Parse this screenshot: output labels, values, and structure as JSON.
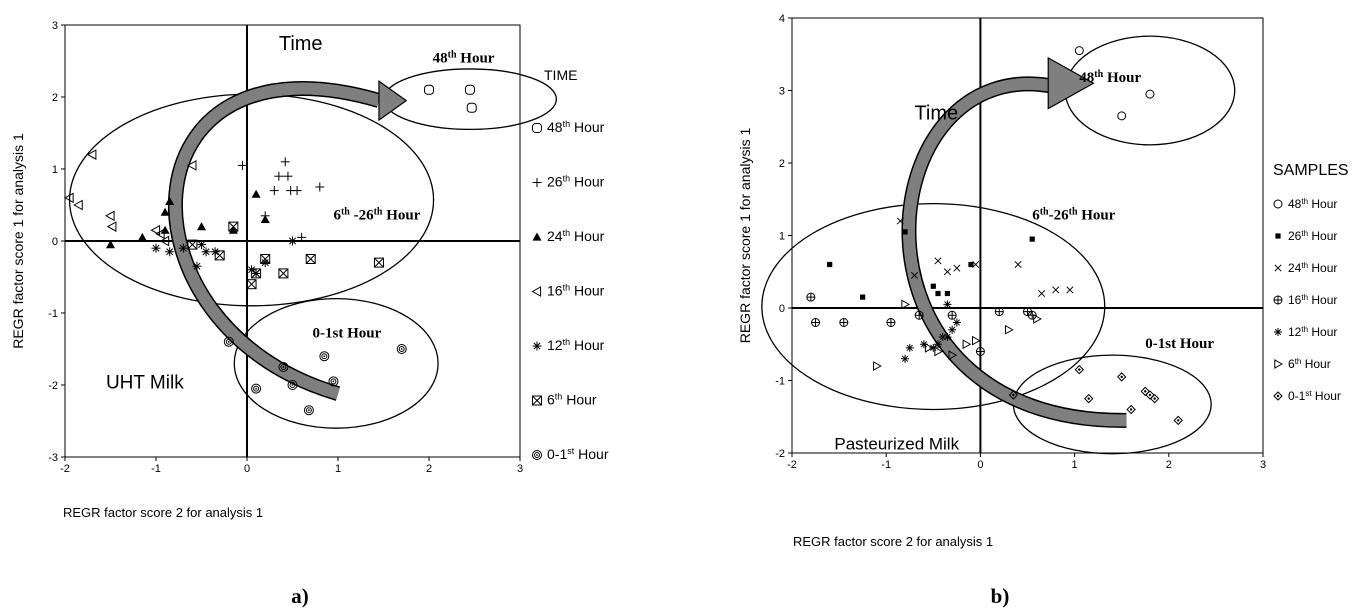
{
  "figure": {
    "left_label": "a)",
    "right_label": "b)"
  },
  "chart_data": [
    {
      "type": "scatter",
      "title": "",
      "xlabel": "REGR factor score   2 for analysis    1",
      "ylabel": "REGR factor score   1 for analysis    1",
      "xlim": [
        -2,
        3
      ],
      "ylim": [
        -3,
        3
      ],
      "xticks": [
        "-2",
        "-1",
        "0",
        "1",
        "2",
        "3"
      ],
      "yticks": [
        "-3",
        "-2",
        "-1",
        "0",
        "1",
        "2",
        "3"
      ],
      "legend_title": "TIME",
      "legend_position": "right",
      "annotations": {
        "time": "Time",
        "milk": "UHT Milk",
        "group_48": "48th Hour",
        "group_6_26": "6th -26th Hour",
        "group_0_1": "0-1st Hour"
      },
      "series": [
        {
          "name": "48th Hour",
          "sup": "th",
          "marker": "square-circle",
          "x": [
            2.0,
            2.45,
            2.47
          ],
          "y": [
            2.1,
            2.1,
            1.85
          ]
        },
        {
          "name": "26th Hour",
          "sup": "th",
          "marker": "plus",
          "x": [
            -0.05,
            0.35,
            0.42,
            0.48,
            0.3,
            0.45,
            0.55,
            0.8,
            0.2,
            0.6
          ],
          "y": [
            1.05,
            0.9,
            1.1,
            0.7,
            0.7,
            0.9,
            0.7,
            0.75,
            0.35,
            0.05
          ]
        },
        {
          "name": "24th Hour",
          "sup": "th",
          "marker": "triangle-up",
          "x": [
            -1.5,
            -1.15,
            -0.9,
            -0.9,
            -0.85,
            -0.5,
            -0.15,
            0.1,
            0.2
          ],
          "y": [
            -0.05,
            0.05,
            0.15,
            0.4,
            0.55,
            0.2,
            0.15,
            0.65,
            0.3
          ]
        },
        {
          "name": "16th Hour",
          "sup": "th",
          "marker": "triangle-left",
          "x": [
            -1.95,
            -1.85,
            -1.7,
            -1.5,
            -1.48,
            -1.0,
            -0.95,
            -0.6,
            -0.9
          ],
          "y": [
            0.6,
            0.5,
            1.2,
            0.35,
            0.2,
            0.15,
            0.1,
            1.05,
            0.0
          ]
        },
        {
          "name": "12th Hour",
          "sup": "th",
          "marker": "asterisk",
          "x": [
            -1.0,
            -0.85,
            -0.7,
            -0.5,
            -0.45,
            -0.35,
            -0.55,
            0.1,
            0.2,
            0.5,
            0.05
          ],
          "y": [
            -0.1,
            -0.15,
            -0.1,
            -0.05,
            -0.15,
            -0.15,
            -0.35,
            -0.45,
            -0.3,
            0.0,
            -0.4
          ]
        },
        {
          "name": "6th Hour",
          "sup": "th",
          "marker": "square-x",
          "x": [
            -0.6,
            -0.3,
            -0.15,
            0.05,
            0.2,
            0.1,
            0.4,
            0.7,
            1.45
          ],
          "y": [
            -0.05,
            -0.2,
            0.2,
            -0.6,
            -0.25,
            -0.45,
            -0.45,
            -0.25,
            -0.3
          ]
        },
        {
          "name": "0-1st Hour",
          "sup": "st",
          "marker": "circle-dot",
          "x": [
            -0.2,
            0.1,
            0.5,
            0.4,
            0.68,
            0.85,
            0.95,
            1.7
          ],
          "y": [
            -1.4,
            -2.05,
            -2.0,
            -1.75,
            -2.35,
            -1.6,
            -1.95,
            -1.5
          ]
        }
      ]
    },
    {
      "type": "scatter",
      "title": "",
      "xlabel": "REGR factor score   2 for analysis    1",
      "ylabel": "REGR factor score   1 for analysis    1",
      "xlim": [
        -2,
        3
      ],
      "ylim": [
        -2,
        4
      ],
      "xticks": [
        "-2",
        "-1",
        "0",
        "1",
        "2",
        "3"
      ],
      "yticks": [
        "-2",
        "-1",
        "0",
        "1",
        "2",
        "3",
        "4"
      ],
      "legend_title": "SAMPLES",
      "legend_position": "right",
      "annotations": {
        "time": "Time",
        "milk": "Pasteurized Milk",
        "group_48": "48th Hour",
        "group_6_26": "6th-26th Hour",
        "group_0_1": "0-1st Hour"
      },
      "series": [
        {
          "name": "48th Hour",
          "sup": "th",
          "marker": "circle",
          "x": [
            1.05,
            1.5,
            1.8
          ],
          "y": [
            3.55,
            2.65,
            2.95
          ]
        },
        {
          "name": "26th Hour",
          "sup": "th",
          "marker": "square",
          "x": [
            -1.6,
            -1.25,
            -0.8,
            -0.5,
            -0.45,
            -0.35,
            -0.1,
            0.55
          ],
          "y": [
            0.6,
            0.15,
            1.05,
            0.3,
            0.2,
            0.2,
            0.6,
            0.95
          ]
        },
        {
          "name": "24th Hour",
          "sup": "th",
          "marker": "x",
          "x": [
            -0.85,
            -0.7,
            -0.45,
            -0.35,
            -0.25,
            -0.05,
            0.4,
            0.65,
            0.8,
            0.95
          ],
          "y": [
            1.2,
            0.45,
            0.65,
            0.5,
            0.55,
            0.6,
            0.6,
            0.2,
            0.25,
            0.25
          ]
        },
        {
          "name": "16th Hour",
          "sup": "th",
          "marker": "circle-plus",
          "x": [
            -1.8,
            -1.75,
            -1.45,
            -0.95,
            -0.65,
            -0.3,
            0.0,
            0.2,
            0.5,
            0.55
          ],
          "y": [
            0.15,
            -0.2,
            -0.2,
            -0.2,
            -0.1,
            -0.1,
            -0.6,
            -0.05,
            -0.05,
            -0.1
          ]
        },
        {
          "name": "12th Hour",
          "sup": "th",
          "marker": "asterisk",
          "x": [
            -0.8,
            -0.75,
            -0.6,
            -0.5,
            -0.45,
            -0.4,
            -0.35,
            -0.3,
            -0.25,
            -0.35
          ],
          "y": [
            -0.7,
            -0.55,
            -0.5,
            -0.55,
            -0.5,
            -0.4,
            -0.4,
            -0.3,
            -0.2,
            0.05
          ]
        },
        {
          "name": "6th Hour",
          "sup": "th",
          "marker": "triangle-right",
          "x": [
            -1.1,
            -0.8,
            -0.55,
            -0.45,
            -0.3,
            -0.15,
            -0.05,
            0.3,
            0.6
          ],
          "y": [
            -0.8,
            0.05,
            -0.55,
            -0.6,
            -0.65,
            -0.5,
            -0.45,
            -0.3,
            -0.15
          ]
        },
        {
          "name": "0-1st Hour",
          "sup": "st",
          "marker": "diamond-dot",
          "x": [
            0.35,
            1.05,
            1.15,
            1.5,
            1.6,
            1.75,
            1.8,
            1.85,
            2.1
          ],
          "y": [
            -1.2,
            -0.85,
            -1.25,
            -0.95,
            -1.4,
            -1.15,
            -1.2,
            -1.25,
            -1.55
          ]
        }
      ]
    }
  ]
}
